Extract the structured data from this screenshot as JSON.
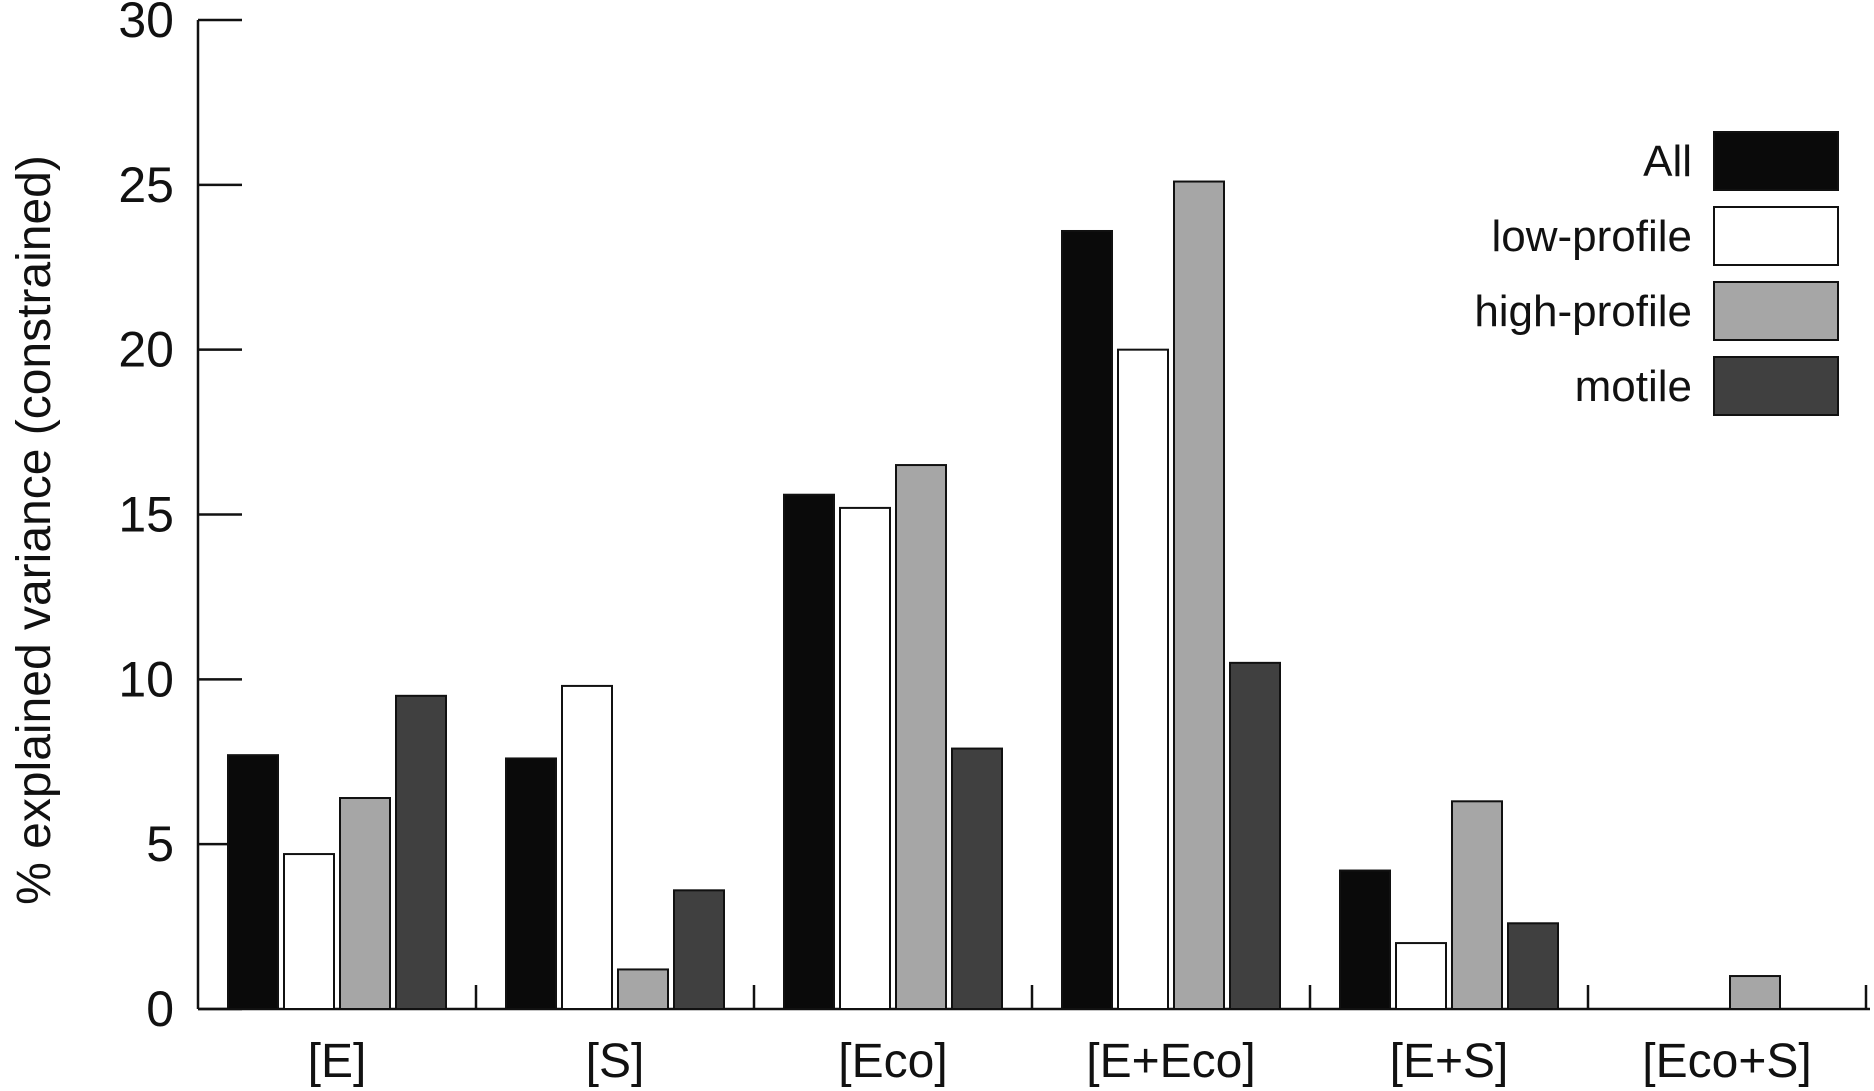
{
  "chart_data": {
    "type": "bar",
    "title": "",
    "xlabel": "",
    "ylabel": "% explained variance (constrained)",
    "ylim": [
      0,
      30
    ],
    "yticks": [
      "0",
      "5",
      "10",
      "15",
      "20",
      "25",
      "30"
    ],
    "categories": [
      "[E]",
      "[S]",
      "[Eco]",
      "[E+Eco]",
      "[E+S]",
      "[Eco+S]"
    ],
    "series": [
      {
        "name": "All",
        "color": "#0a0a0a",
        "values": [
          7.7,
          7.6,
          15.6,
          23.6,
          4.2,
          0
        ]
      },
      {
        "name": "low-profile",
        "color": "#ffffff",
        "values": [
          4.7,
          9.8,
          15.2,
          20.0,
          2.0,
          0
        ]
      },
      {
        "name": "high-profile",
        "color": "#a6a6a6",
        "values": [
          6.4,
          1.2,
          16.5,
          25.1,
          6.3,
          1.0
        ]
      },
      {
        "name": "motile",
        "color": "#404040",
        "values": [
          9.5,
          3.6,
          7.9,
          10.5,
          2.6,
          0
        ]
      }
    ],
    "legend_position": "top-right",
    "grid": false
  }
}
